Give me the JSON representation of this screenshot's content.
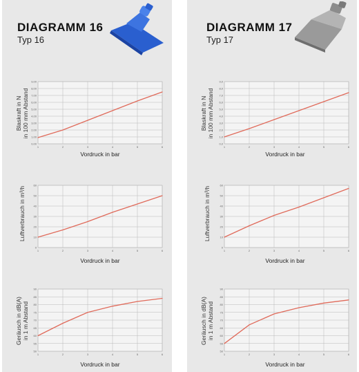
{
  "colors": {
    "line": "#e06a5a",
    "grid": "#b8b8b8",
    "panel": "#e8e8e8"
  },
  "diagrams": [
    {
      "title": "DIAGRAMM 16",
      "subtitle": "Typ 16",
      "icon": "blue-flat-nozzle",
      "charts": [
        {
          "ylabel_1": "Blaskraft in N",
          "ylabel_2": "in 100 mm Abstand",
          "xlabel": "Vordruck in bar"
        },
        {
          "ylabel_1": "Luftverbrauch in m³/h",
          "ylabel_2": "",
          "xlabel": "Vordruck in bar"
        },
        {
          "ylabel_1": "Geräusch in dB(A)",
          "ylabel_2": "in 1 m Abstand",
          "xlabel": "Vordruck in bar"
        }
      ]
    },
    {
      "title": "DIAGRAMM 17",
      "subtitle": "Typ 17",
      "icon": "grey-flat-nozzle",
      "charts": [
        {
          "ylabel_1": "Blaskraft in N",
          "ylabel_2": "in 100 mm Abstand",
          "xlabel": "Vordruck in bar"
        },
        {
          "ylabel_1": "Luftverbrauch in m³/h",
          "ylabel_2": "",
          "xlabel": "Vordruck in bar"
        },
        {
          "ylabel_1": "Geräusch in dB(A)",
          "ylabel_2": "in 1 m Abstand",
          "xlabel": "Vordruck in bar"
        }
      ]
    }
  ],
  "chart_data": [
    {
      "type": "line",
      "panel": "Diagramm 16",
      "ylabel": "Blaskraft in N in 100 mm Abstand",
      "xlabel": "Vordruck in bar",
      "x": [
        1,
        2,
        3,
        4,
        5,
        6
      ],
      "y": [
        0.9,
        2.0,
        3.4,
        4.8,
        6.2,
        7.5
      ],
      "xlim": [
        1,
        6
      ],
      "ylim": [
        0,
        9
      ],
      "x_ticks": [
        "1",
        "2",
        "3",
        "4",
        "5",
        "6"
      ],
      "y_ticks": [
        "0,00",
        "1,00",
        "2,00",
        "3,00",
        "4,00",
        "5,00",
        "6,00",
        "7,00",
        "8,00",
        "9,00"
      ]
    },
    {
      "type": "line",
      "panel": "Diagramm 16",
      "ylabel": "Luftverbrauch in m³/h",
      "xlabel": "Vordruck in bar",
      "x": [
        1,
        2,
        3,
        4,
        5,
        6
      ],
      "y": [
        10,
        17,
        25,
        34,
        42,
        50
      ],
      "xlim": [
        1,
        6
      ],
      "ylim": [
        0,
        60
      ],
      "x_ticks": [
        "1",
        "2",
        "3",
        "4",
        "5",
        "6"
      ],
      "y_ticks": [
        "0",
        "10",
        "20",
        "30",
        "40",
        "50",
        "60"
      ]
    },
    {
      "type": "line",
      "panel": "Diagramm 16",
      "ylabel": "Geräusch in dB(A) in 1 m Abstand",
      "xlabel": "Vordruck in bar",
      "x": [
        1,
        2,
        3,
        4,
        5,
        6
      ],
      "y": [
        60,
        68,
        75,
        79,
        82,
        84
      ],
      "xlim": [
        1,
        6
      ],
      "ylim": [
        50,
        90
      ],
      "x_ticks": [
        "1",
        "2",
        "3",
        "4",
        "5",
        "6"
      ],
      "y_ticks": [
        "50",
        "55",
        "60",
        "65",
        "70",
        "75",
        "80",
        "85",
        "90"
      ]
    },
    {
      "type": "line",
      "panel": "Diagramm 17",
      "ylabel": "Blaskraft in N in 100 mm Abstand",
      "xlabel": "Vordruck in bar",
      "x": [
        1,
        2,
        3,
        4,
        5,
        6
      ],
      "y": [
        1.0,
        2.2,
        3.5,
        4.8,
        6.1,
        7.4
      ],
      "xlim": [
        1,
        6
      ],
      "ylim": [
        0,
        9
      ],
      "x_ticks": [
        "1",
        "2",
        "3",
        "4",
        "5",
        "6"
      ],
      "y_ticks": [
        "0,0",
        "1,0",
        "2,0",
        "3,0",
        "4,0",
        "5,0",
        "6,0",
        "7,0",
        "8,0",
        "9,0"
      ]
    },
    {
      "type": "line",
      "panel": "Diagramm 17",
      "ylabel": "Luftverbrauch in m³/h",
      "xlabel": "Vordruck in bar",
      "x": [
        1,
        2,
        3,
        4,
        5,
        6
      ],
      "y": [
        10,
        21,
        31,
        39,
        48,
        57
      ],
      "xlim": [
        1,
        6
      ],
      "ylim": [
        0,
        60
      ],
      "x_ticks": [
        "1",
        "2",
        "3",
        "4",
        "5",
        "6"
      ],
      "y_ticks": [
        "0",
        "10",
        "20",
        "30",
        "40",
        "50",
        "60"
      ]
    },
    {
      "type": "line",
      "panel": "Diagramm 17",
      "ylabel": "Geräusch in dB(A) in 1 m Abstand",
      "xlabel": "Vordruck in bar",
      "x": [
        1,
        2,
        3,
        4,
        5,
        6
      ],
      "y": [
        55,
        67,
        74,
        78,
        81,
        83
      ],
      "xlim": [
        1,
        6
      ],
      "ylim": [
        50,
        90
      ],
      "x_ticks": [
        "1",
        "2",
        "3",
        "4",
        "5",
        "6"
      ],
      "y_ticks": [
        "50",
        "55",
        "60",
        "65",
        "70",
        "75",
        "80",
        "85",
        "90"
      ]
    }
  ]
}
